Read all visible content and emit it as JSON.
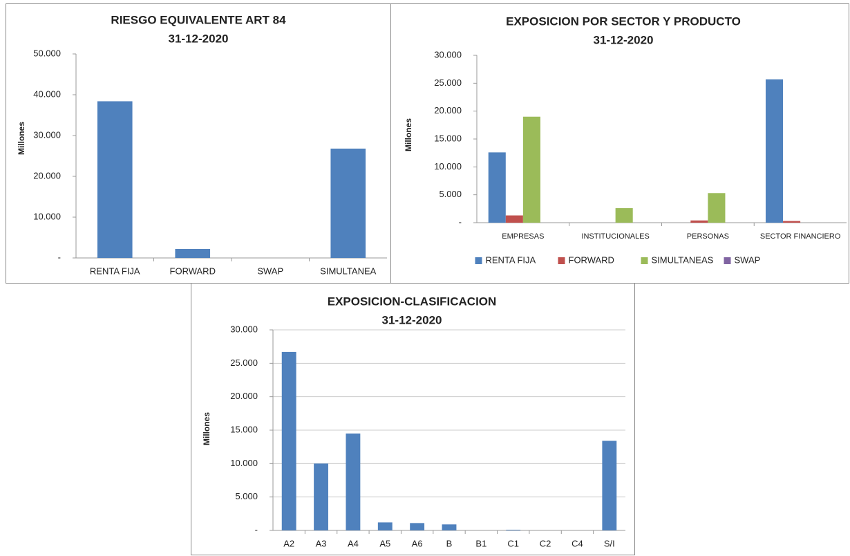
{
  "chart_data": [
    {
      "type": "bar",
      "title": "RIESGO EQUIVALENTE ART 84",
      "subtitle": "31-12-2020",
      "y_label": "Millones",
      "categories": [
        "RENTA FIJA",
        "FORWARD",
        "SWAP",
        "SIMULTANEA"
      ],
      "series": [
        {
          "name": "RENTA FIJA",
          "color": "#4f81bd",
          "values": [
            38400,
            2200,
            0,
            26800
          ]
        }
      ],
      "legend": false,
      "grid": false,
      "ylim": [
        0,
        50000
      ],
      "yticks": [
        {
          "value": 0,
          "label": "-"
        },
        {
          "value": 10000,
          "label": "10.000"
        },
        {
          "value": 20000,
          "label": "20.000"
        },
        {
          "value": 30000,
          "label": "30.000"
        },
        {
          "value": 40000,
          "label": "40.000"
        },
        {
          "value": 50000,
          "label": "50.000"
        }
      ]
    },
    {
      "type": "bar",
      "title": "EXPOSICION POR SECTOR Y PRODUCTO",
      "subtitle": "31-12-2020",
      "y_label": "Millones",
      "categories": [
        "EMPRESAS",
        "INSTITUCIONALES",
        "PERSONAS",
        "SECTOR FINANCIERO"
      ],
      "series": [
        {
          "name": "RENTA FIJA",
          "color": "#4f81bd",
          "values": [
            12600,
            0,
            0,
            25700
          ]
        },
        {
          "name": "FORWARD",
          "color": "#c0504d",
          "values": [
            1300,
            0,
            400,
            300
          ]
        },
        {
          "name": "SIMULTANEAS",
          "color": "#9bbb59",
          "values": [
            19000,
            2600,
            5300,
            0
          ]
        },
        {
          "name": "SWAP",
          "color": "#8064a2",
          "values": [
            0,
            0,
            0,
            0
          ]
        }
      ],
      "legend": "bottom",
      "grid": false,
      "ylim": [
        0,
        30000
      ],
      "yticks": [
        {
          "value": 0,
          "label": "-"
        },
        {
          "value": 5000,
          "label": "5.000"
        },
        {
          "value": 10000,
          "label": "10.000"
        },
        {
          "value": 15000,
          "label": "15.000"
        },
        {
          "value": 20000,
          "label": "20.000"
        },
        {
          "value": 25000,
          "label": "25.000"
        },
        {
          "value": 30000,
          "label": "30.000"
        }
      ]
    },
    {
      "type": "bar",
      "title": "EXPOSICION-CLASIFICACION",
      "subtitle": "31-12-2020",
      "y_label": "Millones",
      "categories": [
        "A2",
        "A3",
        "A4",
        "A5",
        "A6",
        "B",
        "B1",
        "C1",
        "C2",
        "C4",
        "S/I"
      ],
      "series": [
        {
          "name": "EXPOSICION",
          "color": "#4f81bd",
          "values": [
            26700,
            10000,
            14500,
            1200,
            1100,
            900,
            0,
            100,
            0,
            0,
            13400
          ]
        }
      ],
      "legend": false,
      "grid": true,
      "ylim": [
        0,
        30000
      ],
      "yticks": [
        {
          "value": 0,
          "label": "-"
        },
        {
          "value": 5000,
          "label": "5.000"
        },
        {
          "value": 10000,
          "label": "10.000"
        },
        {
          "value": 15000,
          "label": "15.000"
        },
        {
          "value": 20000,
          "label": "20.000"
        },
        {
          "value": 25000,
          "label": "25.000"
        },
        {
          "value": 30000,
          "label": "30.000"
        }
      ]
    }
  ]
}
